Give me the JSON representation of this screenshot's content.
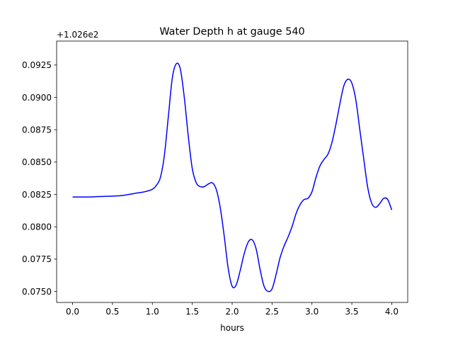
{
  "chart_data": {
    "type": "line",
    "title": "Water Depth h at gauge 540",
    "xlabel": "hours",
    "ylabel": "",
    "offset_label": "+1.026e2",
    "xlim": [
      -0.2,
      4.2
    ],
    "ylim": [
      0.07415,
      0.09435
    ],
    "xticks": [
      0.0,
      0.5,
      1.0,
      1.5,
      2.0,
      2.5,
      3.0,
      3.5,
      4.0
    ],
    "xtick_labels": [
      "0.0",
      "0.5",
      "1.0",
      "1.5",
      "2.0",
      "2.5",
      "3.0",
      "3.5",
      "4.0"
    ],
    "yticks": [
      0.075,
      0.0775,
      0.08,
      0.0825,
      0.085,
      0.0875,
      0.09,
      0.0925
    ],
    "ytick_labels": [
      "0.0750",
      "0.0775",
      "0.0800",
      "0.0825",
      "0.0850",
      "0.0875",
      "0.0900",
      "0.0925"
    ],
    "grid": false,
    "color": "#0000ff",
    "x": [
      0.0,
      0.2,
      0.4,
      0.6,
      0.8,
      0.9,
      1.0,
      1.05,
      1.1,
      1.15,
      1.2,
      1.25,
      1.3,
      1.35,
      1.4,
      1.45,
      1.5,
      1.55,
      1.6,
      1.65,
      1.7,
      1.75,
      1.8,
      1.85,
      1.9,
      1.95,
      2.0,
      2.05,
      2.1,
      2.15,
      2.2,
      2.25,
      2.3,
      2.35,
      2.4,
      2.45,
      2.5,
      2.55,
      2.6,
      2.65,
      2.7,
      2.75,
      2.8,
      2.85,
      2.9,
      2.95,
      3.0,
      3.05,
      3.1,
      3.15,
      3.2,
      3.25,
      3.3,
      3.35,
      3.4,
      3.45,
      3.5,
      3.55,
      3.6,
      3.65,
      3.7,
      3.75,
      3.8,
      3.85,
      3.9,
      3.95,
      4.0
    ],
    "y": [
      0.0823,
      0.0823,
      0.08235,
      0.0824,
      0.0826,
      0.0827,
      0.0829,
      0.0832,
      0.0838,
      0.0855,
      0.0885,
      0.0915,
      0.0926,
      0.0922,
      0.09,
      0.087,
      0.0845,
      0.0834,
      0.0831,
      0.0831,
      0.0833,
      0.0834,
      0.0829,
      0.0815,
      0.0793,
      0.0768,
      0.0754,
      0.0755,
      0.0766,
      0.0779,
      0.0788,
      0.079,
      0.0783,
      0.0767,
      0.0754,
      0.075,
      0.0752,
      0.0763,
      0.0776,
      0.0785,
      0.0792,
      0.08,
      0.081,
      0.0817,
      0.0821,
      0.0822,
      0.0827,
      0.0838,
      0.0847,
      0.0852,
      0.0856,
      0.0865,
      0.0879,
      0.0895,
      0.0909,
      0.0914,
      0.0911,
      0.0898,
      0.0875,
      0.0852,
      0.083,
      0.0818,
      0.0815,
      0.0818,
      0.0822,
      0.0821,
      0.0813
    ]
  }
}
